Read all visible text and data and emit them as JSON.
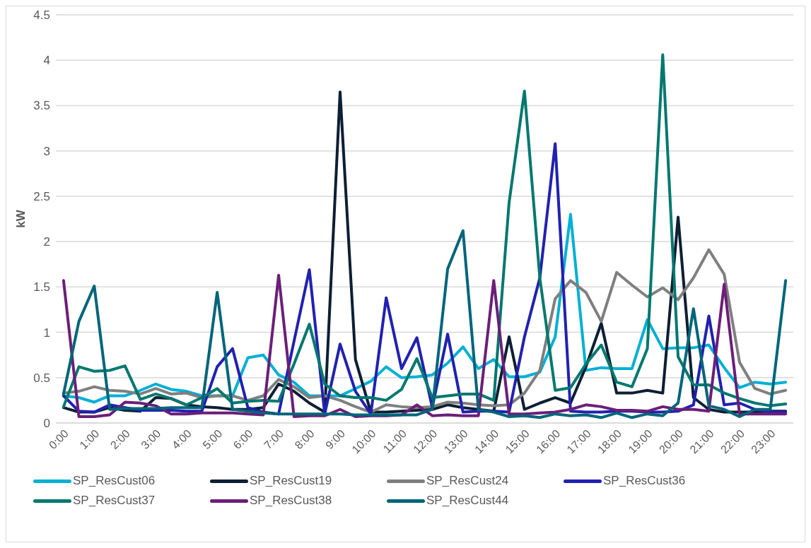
{
  "chart_data": {
    "type": "line",
    "ylabel": "kW",
    "categories": [
      "0:00",
      null,
      "1:00",
      null,
      "2:00",
      null,
      "3:00",
      null,
      "4:00",
      null,
      "5:00",
      null,
      "6:00",
      null,
      "7:00",
      null,
      "8:00",
      null,
      "9:00",
      null,
      "10:00",
      null,
      "11:00",
      null,
      "12:00",
      null,
      "13:00",
      null,
      "14:00",
      null,
      "15:00",
      null,
      "16:00",
      null,
      "17:00",
      null,
      "18:00",
      null,
      "19:00",
      null,
      "20:00",
      null,
      "21:00",
      null,
      "22:00",
      null,
      "23:00",
      null
    ],
    "ylim": [
      0,
      4.5
    ],
    "yticks": [
      0,
      0.5,
      1,
      1.5,
      2,
      2.5,
      3,
      3.5,
      4,
      4.5
    ],
    "grid": "y",
    "legend": "bottom",
    "line_style": "solid",
    "series": [
      {
        "name": "SP_ResCust06",
        "color": "#00b0d4",
        "values": [
          0.3,
          0.28,
          0.23,
          0.3,
          0.3,
          0.36,
          0.43,
          0.37,
          0.35,
          0.3,
          0.3,
          0.3,
          0.72,
          0.75,
          0.53,
          0.45,
          0.3,
          0.3,
          0.3,
          0.38,
          0.46,
          0.62,
          0.5,
          0.51,
          0.53,
          0.66,
          0.84,
          0.6,
          0.7,
          0.51,
          0.51,
          0.56,
          0.95,
          2.3,
          0.58,
          0.61,
          0.6,
          0.6,
          1.14,
          0.82,
          0.83,
          0.83,
          0.86,
          0.61,
          0.39,
          0.45,
          0.43,
          0.45
        ]
      },
      {
        "name": "SP_ResCust19",
        "color": "#0d1f33",
        "values": [
          0.17,
          0.12,
          0.12,
          0.17,
          0.14,
          0.13,
          0.28,
          0.27,
          0.2,
          0.18,
          0.17,
          0.15,
          0.15,
          0.17,
          0.43,
          0.35,
          0.22,
          0.12,
          3.65,
          0.7,
          0.12,
          0.12,
          0.13,
          0.14,
          0.15,
          0.2,
          0.17,
          0.15,
          0.13,
          0.95,
          0.15,
          0.22,
          0.28,
          0.22,
          0.62,
          1.1,
          0.33,
          0.33,
          0.36,
          0.33,
          2.27,
          0.28,
          0.15,
          0.12,
          0.12,
          0.12,
          0.13,
          0.13
        ]
      },
      {
        "name": "SP_ResCust24",
        "color": "#7f7f7f",
        "values": [
          0.33,
          0.35,
          0.4,
          0.36,
          0.35,
          0.32,
          0.38,
          0.32,
          0.33,
          0.28,
          0.3,
          0.3,
          0.25,
          0.3,
          0.48,
          0.4,
          0.28,
          0.3,
          0.25,
          0.18,
          0.12,
          0.2,
          0.18,
          0.17,
          0.18,
          0.23,
          0.22,
          0.2,
          0.19,
          0.2,
          0.33,
          0.58,
          1.37,
          1.57,
          1.44,
          1.12,
          1.66,
          1.52,
          1.39,
          1.49,
          1.36,
          1.6,
          1.91,
          1.64,
          0.67,
          0.38,
          0.32,
          0.36
        ]
      },
      {
        "name": "SP_ResCust36",
        "color": "#2121b0",
        "values": [
          0.3,
          0.13,
          0.12,
          0.2,
          0.17,
          0.14,
          0.14,
          0.14,
          0.13,
          0.13,
          0.62,
          0.82,
          0.17,
          0.12,
          0.1,
          0.9,
          1.69,
          0.1,
          0.87,
          0.35,
          0.1,
          1.38,
          0.6,
          0.94,
          0.17,
          0.98,
          0.12,
          0.13,
          0.13,
          0.12,
          0.95,
          1.6,
          3.08,
          0.13,
          0.12,
          0.12,
          0.13,
          0.13,
          0.12,
          0.12,
          0.13,
          0.2,
          1.18,
          0.2,
          0.22,
          0.15,
          0.12,
          0.12
        ]
      },
      {
        "name": "SP_ResCust37",
        "color": "#00786f",
        "values": [
          0.18,
          0.62,
          0.57,
          0.58,
          0.63,
          0.26,
          0.32,
          0.27,
          0.2,
          0.28,
          0.38,
          0.22,
          0.24,
          0.25,
          0.24,
          0.65,
          1.09,
          0.43,
          0.3,
          0.28,
          0.28,
          0.25,
          0.37,
          0.71,
          0.28,
          0.3,
          0.32,
          0.32,
          0.25,
          2.43,
          3.66,
          1.6,
          0.36,
          0.39,
          0.65,
          0.86,
          0.45,
          0.4,
          0.82,
          4.06,
          0.73,
          0.42,
          0.42,
          0.33,
          0.27,
          0.22,
          0.19,
          0.21
        ]
      },
      {
        "name": "SP_ResCust38",
        "color": "#6b1f78",
        "values": [
          1.57,
          0.07,
          0.07,
          0.09,
          0.23,
          0.22,
          0.19,
          0.1,
          0.1,
          0.11,
          0.11,
          0.11,
          0.1,
          0.09,
          1.63,
          0.07,
          0.08,
          0.08,
          0.15,
          0.07,
          0.08,
          0.08,
          0.09,
          0.2,
          0.08,
          0.09,
          0.08,
          0.08,
          1.57,
          0.1,
          0.1,
          0.11,
          0.12,
          0.15,
          0.2,
          0.18,
          0.14,
          0.14,
          0.13,
          0.18,
          0.15,
          0.15,
          0.13,
          1.53,
          0.1,
          0.1,
          0.1,
          0.1
        ]
      },
      {
        "name": "SP_ResCust44",
        "color": "#00657a",
        "values": [
          0.32,
          1.12,
          1.51,
          0.15,
          0.16,
          0.16,
          0.16,
          0.17,
          0.17,
          0.17,
          1.44,
          0.15,
          0.13,
          0.11,
          0.1,
          0.1,
          0.1,
          0.1,
          0.1,
          0.09,
          0.09,
          0.09,
          0.09,
          0.09,
          0.15,
          1.7,
          2.12,
          0.15,
          0.12,
          0.07,
          0.08,
          0.06,
          0.1,
          0.08,
          0.09,
          0.06,
          0.11,
          0.06,
          0.1,
          0.08,
          0.22,
          1.26,
          0.19,
          0.15,
          0.07,
          0.15,
          0.15,
          1.57
        ]
      }
    ]
  }
}
